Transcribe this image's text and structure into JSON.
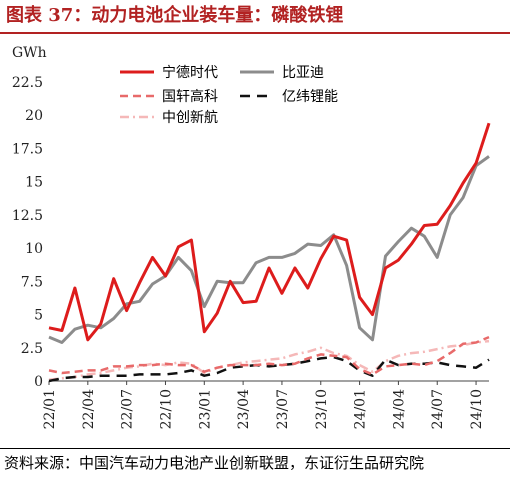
{
  "header": {
    "title": "图表 37：动力电池企业装车量：磷酸铁锂"
  },
  "footer": {
    "source": "资料来源：中国汽车动力电池产业创新联盟，东证衍生品研究院"
  },
  "chart_data": {
    "type": "line",
    "ylabel": "GWh",
    "ylim": [
      0,
      22.5
    ],
    "yticks": [
      0,
      2.5,
      5,
      7.5,
      10,
      12.5,
      15,
      17.5,
      20,
      22.5
    ],
    "x_tick_labels": [
      "22/01",
      "22/04",
      "22/07",
      "22/10",
      "23/01",
      "23/04",
      "23/07",
      "23/10",
      "24/01",
      "24/04",
      "24/07",
      "24/10"
    ],
    "x": [
      "22/01",
      "22/02",
      "22/03",
      "22/04",
      "22/05",
      "22/06",
      "22/07",
      "22/08",
      "22/09",
      "22/10",
      "22/11",
      "22/12",
      "23/01",
      "23/02",
      "23/03",
      "23/04",
      "23/05",
      "23/06",
      "23/07",
      "23/08",
      "23/09",
      "23/10",
      "23/11",
      "23/12",
      "24/01",
      "24/02",
      "24/03",
      "24/04",
      "24/05",
      "24/06",
      "24/07",
      "24/08",
      "24/09",
      "24/10",
      "24/11"
    ],
    "legend_position": "top",
    "series": [
      {
        "name": "宁德时代",
        "color": "#dd1c1c",
        "dash": "solid",
        "values": [
          4.0,
          3.8,
          7.0,
          3.1,
          4.3,
          7.7,
          5.3,
          7.4,
          9.3,
          7.9,
          10.1,
          10.6,
          3.7,
          5.1,
          7.5,
          5.9,
          6.0,
          8.5,
          6.6,
          8.5,
          7.0,
          9.2,
          10.9,
          10.6,
          6.3,
          5.0,
          8.5,
          9.1,
          10.3,
          11.7,
          11.8,
          13.2,
          14.9,
          16.4,
          19.4
        ]
      },
      {
        "name": "比亚迪",
        "color": "#8c8c8c",
        "dash": "solid",
        "values": [
          3.3,
          2.9,
          3.9,
          4.2,
          4.0,
          4.7,
          5.8,
          6.0,
          7.3,
          7.9,
          9.3,
          8.3,
          5.6,
          7.5,
          7.4,
          7.4,
          8.9,
          9.3,
          9.3,
          9.6,
          10.3,
          10.2,
          11.0,
          8.7,
          4.0,
          3.1,
          9.4,
          10.5,
          11.5,
          10.9,
          9.3,
          12.5,
          13.8,
          16.2,
          16.9
        ]
      },
      {
        "name": "国轩高科",
        "color": "#e86a6a",
        "dash": "dash",
        "values": [
          0.8,
          0.6,
          0.7,
          0.8,
          0.8,
          1.1,
          1.1,
          1.2,
          1.2,
          1.3,
          1.2,
          1.2,
          0.7,
          1.0,
          1.2,
          1.2,
          1.2,
          1.3,
          1.2,
          1.3,
          1.7,
          2.0,
          1.9,
          1.8,
          0.9,
          0.5,
          1.1,
          1.2,
          1.3,
          1.2,
          1.5,
          2.1,
          2.8,
          2.9,
          3.3
        ]
      },
      {
        "name": "亿纬锂能",
        "color": "#111111",
        "dash": "longdash",
        "values": [
          0.0,
          0.2,
          0.3,
          0.3,
          0.4,
          0.4,
          0.4,
          0.5,
          0.5,
          0.5,
          0.6,
          0.8,
          0.4,
          0.6,
          1.0,
          1.1,
          1.2,
          1.1,
          1.2,
          1.3,
          1.5,
          1.7,
          1.8,
          1.5,
          0.8,
          0.4,
          1.6,
          1.2,
          1.3,
          1.3,
          1.4,
          1.2,
          1.1,
          1.0,
          1.6
        ]
      },
      {
        "name": "中创新航",
        "color": "#f5b8b8",
        "dash": "dashdot",
        "values": [
          0.1,
          0.2,
          0.3,
          0.5,
          0.6,
          0.8,
          1.0,
          1.1,
          1.3,
          1.2,
          1.4,
          1.3,
          0.6,
          1.0,
          1.2,
          1.4,
          1.5,
          1.6,
          1.7,
          2.0,
          2.2,
          2.5,
          2.1,
          1.9,
          1.2,
          0.7,
          1.5,
          1.9,
          2.1,
          2.2,
          2.4,
          2.6,
          2.7,
          2.9,
          3.0
        ]
      }
    ]
  }
}
